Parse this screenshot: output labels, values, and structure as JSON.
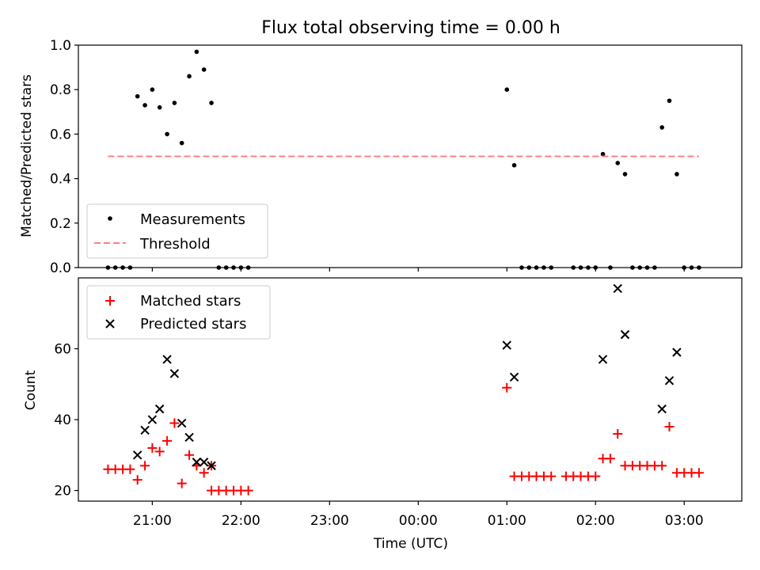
{
  "figure": {
    "title": "Flux total observing time = 0.00 h",
    "xlabel": "Time (UTC)",
    "xticks": [
      "21:00",
      "22:00",
      "23:00",
      "00:00",
      "01:00",
      "02:00",
      "03:00"
    ]
  },
  "chart_data": [
    {
      "type": "scatter",
      "title": "Flux total observing time = 0.00 h",
      "xlabel": "",
      "ylabel": "Matched/Predicted stars",
      "x_unit": "hours since 21:00 UTC",
      "xlim": [
        -0.834,
        6.65
      ],
      "ylim": [
        0,
        1.0
      ],
      "yticks": [
        "0.0",
        "0.2",
        "0.4",
        "0.6",
        "0.8",
        "1.0"
      ],
      "legend": {
        "placement": "lower left",
        "entries": [
          "Measurements",
          "Threshold"
        ]
      },
      "series": [
        {
          "name": "Measurements",
          "marker": "dot",
          "color": "#000000",
          "points": [
            [
              -0.5,
              0
            ],
            [
              -0.417,
              0
            ],
            [
              -0.333,
              0
            ],
            [
              -0.25,
              0
            ],
            [
              -0.167,
              0.77
            ],
            [
              -0.083,
              0.73
            ],
            [
              0.0,
              0.8
            ],
            [
              0.083,
              0.72
            ],
            [
              0.167,
              0.6
            ],
            [
              0.25,
              0.74
            ],
            [
              0.333,
              0.56
            ],
            [
              0.417,
              0.86
            ],
            [
              0.5,
              0.97
            ],
            [
              0.583,
              0.89
            ],
            [
              0.667,
              0.74
            ],
            [
              0.75,
              0
            ],
            [
              0.833,
              0
            ],
            [
              0.917,
              0
            ],
            [
              1.0,
              0
            ],
            [
              1.083,
              0
            ],
            [
              4.0,
              0.8
            ],
            [
              4.083,
              0.46
            ],
            [
              4.167,
              0
            ],
            [
              4.25,
              0
            ],
            [
              4.333,
              0
            ],
            [
              4.417,
              0
            ],
            [
              4.5,
              0
            ],
            [
              4.75,
              0
            ],
            [
              4.833,
              0
            ],
            [
              4.917,
              0
            ],
            [
              5.0,
              0
            ],
            [
              5.083,
              0.51
            ],
            [
              5.167,
              0
            ],
            [
              5.25,
              0.47
            ],
            [
              5.333,
              0.42
            ],
            [
              5.417,
              0
            ],
            [
              5.5,
              0
            ],
            [
              5.583,
              0
            ],
            [
              5.667,
              0
            ],
            [
              5.75,
              0.63
            ],
            [
              5.833,
              0.75
            ],
            [
              5.917,
              0.42
            ],
            [
              6.0,
              0
            ],
            [
              6.083,
              0
            ],
            [
              6.167,
              0
            ]
          ]
        },
        {
          "name": "Threshold",
          "line": "dashed",
          "color": "#ff7f7f",
          "points": [
            [
              -0.5,
              0.5
            ],
            [
              6.167,
              0.5
            ]
          ]
        }
      ]
    },
    {
      "type": "scatter",
      "title": "",
      "xlabel": "Time (UTC)",
      "ylabel": "Count",
      "x_unit": "hours since 21:00 UTC",
      "xlim": [
        -0.834,
        6.65
      ],
      "ylim": [
        17,
        80
      ],
      "yticks": [
        "20",
        "40",
        "60"
      ],
      "legend": {
        "placement": "upper left",
        "entries": [
          "Matched stars",
          "Predicted stars"
        ]
      },
      "series": [
        {
          "name": "Matched stars",
          "marker": "plus",
          "color": "#ff0000",
          "points": [
            [
              -0.5,
              26
            ],
            [
              -0.417,
              26
            ],
            [
              -0.333,
              26
            ],
            [
              -0.25,
              26
            ],
            [
              -0.167,
              23
            ],
            [
              -0.083,
              27
            ],
            [
              0.0,
              32
            ],
            [
              0.083,
              31
            ],
            [
              0.167,
              34
            ],
            [
              0.25,
              39
            ],
            [
              0.333,
              22
            ],
            [
              0.417,
              30
            ],
            [
              0.5,
              27
            ],
            [
              0.583,
              25
            ],
            [
              0.667,
              27
            ],
            [
              0.667,
              20
            ],
            [
              0.75,
              20
            ],
            [
              0.833,
              20
            ],
            [
              0.917,
              20
            ],
            [
              1.0,
              20
            ],
            [
              1.083,
              20
            ],
            [
              4.0,
              49
            ],
            [
              4.083,
              24
            ],
            [
              4.167,
              24
            ],
            [
              4.25,
              24
            ],
            [
              4.333,
              24
            ],
            [
              4.417,
              24
            ],
            [
              4.5,
              24
            ],
            [
              4.667,
              24
            ],
            [
              4.75,
              24
            ],
            [
              4.833,
              24
            ],
            [
              4.917,
              24
            ],
            [
              5.0,
              24
            ],
            [
              5.083,
              29
            ],
            [
              5.167,
              29
            ],
            [
              5.25,
              36
            ],
            [
              5.333,
              27
            ],
            [
              5.417,
              27
            ],
            [
              5.5,
              27
            ],
            [
              5.583,
              27
            ],
            [
              5.667,
              27
            ],
            [
              5.75,
              27
            ],
            [
              5.833,
              38
            ],
            [
              5.917,
              25
            ],
            [
              6.0,
              25
            ],
            [
              6.083,
              25
            ],
            [
              6.167,
              25
            ]
          ]
        },
        {
          "name": "Predicted stars",
          "marker": "x",
          "color": "#000000",
          "points": [
            [
              -0.167,
              30
            ],
            [
              -0.083,
              37
            ],
            [
              0.0,
              40
            ],
            [
              0.083,
              43
            ],
            [
              0.167,
              57
            ],
            [
              0.25,
              53
            ],
            [
              0.333,
              39
            ],
            [
              0.417,
              35
            ],
            [
              0.5,
              28
            ],
            [
              0.583,
              28
            ],
            [
              0.667,
              27
            ],
            [
              4.0,
              61
            ],
            [
              4.083,
              52
            ],
            [
              5.083,
              57
            ],
            [
              5.25,
              77
            ],
            [
              5.333,
              64
            ],
            [
              5.75,
              43
            ],
            [
              5.833,
              51
            ],
            [
              5.917,
              59
            ]
          ]
        }
      ]
    }
  ]
}
